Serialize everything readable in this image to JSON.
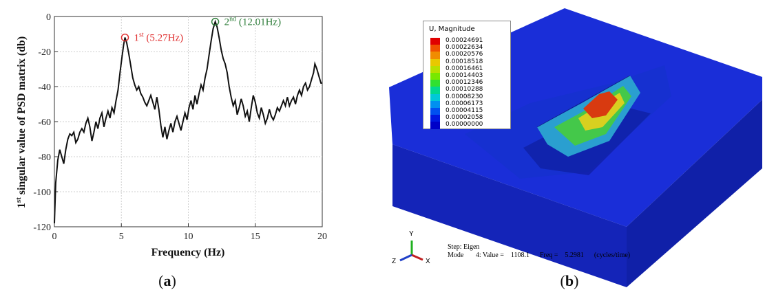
{
  "chart_data": {
    "type": "line",
    "title": "",
    "xlabel": "Frequency (Hz)",
    "ylabel_parts": {
      "ord": "1",
      "sup": "st",
      "rest": " singular value of PSD matrix (db)"
    },
    "xlim": [
      0,
      20
    ],
    "ylim": [
      -120,
      0
    ],
    "x_ticks": [
      0,
      5,
      10,
      15,
      20
    ],
    "y_ticks": [
      0,
      -20,
      -40,
      -60,
      -80,
      -100,
      -120
    ],
    "grid": true,
    "panel_label": "a",
    "series": [
      {
        "color": "#111111",
        "points": [
          [
            0.0,
            -118
          ],
          [
            0.1,
            -95
          ],
          [
            0.25,
            -82
          ],
          [
            0.4,
            -76
          ],
          [
            0.55,
            -80
          ],
          [
            0.7,
            -84
          ],
          [
            0.85,
            -76
          ],
          [
            1.0,
            -70
          ],
          [
            1.15,
            -67
          ],
          [
            1.3,
            -68
          ],
          [
            1.45,
            -66
          ],
          [
            1.6,
            -72
          ],
          [
            1.75,
            -70
          ],
          [
            1.9,
            -66
          ],
          [
            2.05,
            -64
          ],
          [
            2.2,
            -66
          ],
          [
            2.35,
            -61
          ],
          [
            2.5,
            -58
          ],
          [
            2.65,
            -63
          ],
          [
            2.8,
            -71
          ],
          [
            2.95,
            -66
          ],
          [
            3.1,
            -60
          ],
          [
            3.25,
            -64
          ],
          [
            3.4,
            -58
          ],
          [
            3.55,
            -55
          ],
          [
            3.7,
            -63
          ],
          [
            3.85,
            -58
          ],
          [
            4.0,
            -54
          ],
          [
            4.15,
            -58
          ],
          [
            4.3,
            -52
          ],
          [
            4.45,
            -55
          ],
          [
            4.6,
            -48
          ],
          [
            4.75,
            -42
          ],
          [
            4.9,
            -32
          ],
          [
            5.05,
            -23
          ],
          [
            5.17,
            -16
          ],
          [
            5.27,
            -12
          ],
          [
            5.4,
            -15
          ],
          [
            5.55,
            -21
          ],
          [
            5.7,
            -28
          ],
          [
            5.85,
            -35
          ],
          [
            6.0,
            -39
          ],
          [
            6.15,
            -42
          ],
          [
            6.3,
            -40
          ],
          [
            6.45,
            -44
          ],
          [
            6.6,
            -46
          ],
          [
            6.75,
            -49
          ],
          [
            6.9,
            -51
          ],
          [
            7.05,
            -48
          ],
          [
            7.2,
            -45
          ],
          [
            7.35,
            -49
          ],
          [
            7.5,
            -53
          ],
          [
            7.65,
            -46
          ],
          [
            7.8,
            -53
          ],
          [
            7.95,
            -62
          ],
          [
            8.1,
            -69
          ],
          [
            8.25,
            -63
          ],
          [
            8.4,
            -70
          ],
          [
            8.55,
            -65
          ],
          [
            8.7,
            -61
          ],
          [
            8.85,
            -66
          ],
          [
            9.0,
            -60
          ],
          [
            9.15,
            -57
          ],
          [
            9.3,
            -61
          ],
          [
            9.45,
            -65
          ],
          [
            9.6,
            -60
          ],
          [
            9.75,
            -55
          ],
          [
            9.9,
            -59
          ],
          [
            10.05,
            -52
          ],
          [
            10.2,
            -48
          ],
          [
            10.35,
            -53
          ],
          [
            10.5,
            -45
          ],
          [
            10.65,
            -50
          ],
          [
            10.8,
            -44
          ],
          [
            10.95,
            -39
          ],
          [
            11.1,
            -42
          ],
          [
            11.25,
            -35
          ],
          [
            11.4,
            -30
          ],
          [
            11.55,
            -22
          ],
          [
            11.7,
            -14
          ],
          [
            11.85,
            -7
          ],
          [
            12.01,
            -3
          ],
          [
            12.15,
            -6
          ],
          [
            12.3,
            -12
          ],
          [
            12.45,
            -19
          ],
          [
            12.6,
            -24
          ],
          [
            12.75,
            -27
          ],
          [
            12.9,
            -32
          ],
          [
            13.05,
            -40
          ],
          [
            13.2,
            -46
          ],
          [
            13.35,
            -51
          ],
          [
            13.5,
            -48
          ],
          [
            13.65,
            -56
          ],
          [
            13.8,
            -52
          ],
          [
            13.95,
            -47
          ],
          [
            14.1,
            -51
          ],
          [
            14.25,
            -57
          ],
          [
            14.4,
            -54
          ],
          [
            14.55,
            -60
          ],
          [
            14.7,
            -52
          ],
          [
            14.85,
            -45
          ],
          [
            15.0,
            -49
          ],
          [
            15.15,
            -55
          ],
          [
            15.3,
            -58
          ],
          [
            15.45,
            -52
          ],
          [
            15.6,
            -56
          ],
          [
            15.75,
            -61
          ],
          [
            15.9,
            -58
          ],
          [
            16.05,
            -53
          ],
          [
            16.2,
            -57
          ],
          [
            16.35,
            -59
          ],
          [
            16.5,
            -56
          ],
          [
            16.65,
            -52
          ],
          [
            16.8,
            -54
          ],
          [
            16.95,
            -51
          ],
          [
            17.1,
            -48
          ],
          [
            17.25,
            -51
          ],
          [
            17.4,
            -46
          ],
          [
            17.55,
            -51
          ],
          [
            17.7,
            -48
          ],
          [
            17.85,
            -46
          ],
          [
            18.0,
            -50
          ],
          [
            18.15,
            -45
          ],
          [
            18.3,
            -42
          ],
          [
            18.45,
            -45
          ],
          [
            18.6,
            -40
          ],
          [
            18.75,
            -38
          ],
          [
            18.9,
            -42
          ],
          [
            19.05,
            -40
          ],
          [
            19.2,
            -36
          ],
          [
            19.35,
            -32
          ],
          [
            19.45,
            -27
          ],
          [
            19.6,
            -30
          ],
          [
            19.75,
            -34
          ],
          [
            19.9,
            -38
          ],
          [
            20.0,
            -38
          ]
        ]
      }
    ],
    "peaks": [
      {
        "x": 5.27,
        "y": -12,
        "ord": "1",
        "sup": "st",
        "value_text": " (5.27Hz)",
        "color": "#e03030"
      },
      {
        "x": 12.01,
        "y": -3,
        "ord": "2",
        "sup": "nd",
        "value_text": " (12.01Hz)",
        "color": "#2e7d3a"
      }
    ]
  },
  "fe_model": {
    "panel_label": "b",
    "legend": {
      "title": "U, Magnitude",
      "entries": [
        {
          "value": "0.00024691",
          "color": "#e00000"
        },
        {
          "value": "0.00022634",
          "color": "#f05000"
        },
        {
          "value": "0.00020576",
          "color": "#f08c00"
        },
        {
          "value": "0.00018518",
          "color": "#e8c800"
        },
        {
          "value": "0.00016461",
          "color": "#b8e000"
        },
        {
          "value": "0.00014403",
          "color": "#78e800"
        },
        {
          "value": "0.00012346",
          "color": "#30e030"
        },
        {
          "value": "0.00010288",
          "color": "#00d890"
        },
        {
          "value": "0.00008230",
          "color": "#00c8d8"
        },
        {
          "value": "0.00006173",
          "color": "#0090f0"
        },
        {
          "value": "0.00004115",
          "color": "#0050f0"
        },
        {
          "value": "0.00002058",
          "color": "#0018e0"
        },
        {
          "value": "0.00000000",
          "color": "#0000c8"
        }
      ]
    },
    "axes_triad": {
      "y": "Y",
      "z": "Z",
      "x": "X"
    },
    "step_line": "Step: Eigen",
    "mode_line": "Mode       4: Value =    1108.1      Freq =    5.2981      (cycles/time)"
  }
}
